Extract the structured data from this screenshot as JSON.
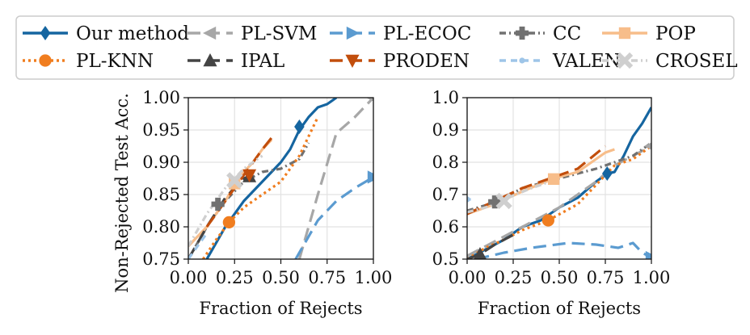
{
  "legend": [
    {
      "key": "ours",
      "label": "Our method",
      "color": "#1565a0",
      "dash": "",
      "marker": "diamond"
    },
    {
      "key": "plsvm",
      "label": "PL-SVM",
      "color": "#a7a7a7",
      "dash": "16,8",
      "marker": "triangle-left"
    },
    {
      "key": "plecoc",
      "label": "PL-ECOC",
      "color": "#5b9bd0",
      "dash": "16,8",
      "marker": "triangle-right"
    },
    {
      "key": "cc",
      "label": "CC",
      "color": "#717171",
      "dash": "8,4,2,4",
      "marker": "plus"
    },
    {
      "key": "pop",
      "label": "POP",
      "color": "#f7bd8a",
      "dash": "",
      "marker": "square"
    },
    {
      "key": "plknn",
      "label": "PL-KNN",
      "color": "#f07d1f",
      "dash": "3,4",
      "marker": "circle"
    },
    {
      "key": "ipal",
      "label": "IPAL",
      "color": "#444444",
      "dash": "16,8",
      "marker": "triangle-up"
    },
    {
      "key": "proden",
      "label": "PRODEN",
      "color": "#c24e0c",
      "dash": "16,8",
      "marker": "triangle-down"
    },
    {
      "key": "valen",
      "label": "VALEN",
      "color": "#9ec5e8",
      "dash": "8,6",
      "marker": "dot"
    },
    {
      "key": "crosel",
      "label": "CROSEL",
      "color": "#cfcfcf",
      "dash": "8,4,2,4",
      "marker": "x"
    }
  ],
  "chart_data": [
    {
      "type": "line",
      "xlabel": "Fraction of Rejects",
      "ylabel": "Non-Rejected Test Acc.",
      "xlim": [
        0.0,
        1.0
      ],
      "ylim": [
        0.75,
        1.0
      ],
      "xticks": [
        "0.00",
        "0.25",
        "0.50",
        "0.75",
        "1.00"
      ],
      "yticks": [
        "0.75",
        "0.80",
        "0.85",
        "0.90",
        "0.95",
        "1.00"
      ],
      "grid": true,
      "series": [
        {
          "key": "ours",
          "x": [
            0.1,
            0.2,
            0.3,
            0.4,
            0.5,
            0.55,
            0.6,
            0.65,
            0.7,
            0.75,
            0.8
          ],
          "y": [
            0.75,
            0.8,
            0.84,
            0.87,
            0.9,
            0.92,
            0.95,
            0.97,
            0.985,
            0.99,
            1.0
          ],
          "marker_at": [
            0.6,
            0.955
          ]
        },
        {
          "key": "plsvm",
          "x": [
            0.6,
            0.7,
            0.8,
            0.9,
            1.0
          ],
          "y": [
            0.75,
            0.85,
            0.945,
            0.97,
            1.0
          ],
          "marker_at": [
            1.0,
            1.0
          ]
        },
        {
          "key": "plecoc",
          "x": [
            0.58,
            0.7,
            0.8,
            0.9,
            1.0
          ],
          "y": [
            0.75,
            0.81,
            0.84,
            0.86,
            0.877
          ],
          "marker_at": [
            1.0,
            0.877
          ]
        },
        {
          "key": "cc",
          "x": [
            0.0,
            0.1,
            0.2,
            0.3,
            0.4,
            0.5,
            0.6,
            0.65
          ],
          "y": [
            0.75,
            0.8,
            0.84,
            0.87,
            0.885,
            0.89,
            0.905,
            0.93
          ],
          "marker_at": [
            0.16,
            0.835
          ]
        },
        {
          "key": "pop",
          "x": [
            0.0,
            0.1,
            0.2,
            0.25,
            0.3,
            0.35,
            0.4,
            0.45
          ],
          "y": [
            0.77,
            0.8,
            0.84,
            0.865,
            0.885,
            0.9,
            0.92,
            0.935
          ],
          "marker_at": [
            0.25,
            0.867
          ]
        },
        {
          "key": "plknn",
          "x": [
            0.08,
            0.15,
            0.22,
            0.3,
            0.4,
            0.5,
            0.6,
            0.7
          ],
          "y": [
            0.75,
            0.78,
            0.807,
            0.83,
            0.85,
            0.87,
            0.91,
            0.97
          ],
          "marker_at": [
            0.22,
            0.807
          ]
        },
        {
          "key": "ipal",
          "x": [
            0.0,
            0.1,
            0.2,
            0.3,
            0.35
          ],
          "y": [
            0.75,
            0.8,
            0.845,
            0.875,
            0.88
          ],
          "marker_at": [
            0.33,
            0.878
          ]
        },
        {
          "key": "proden",
          "x": [
            0.1,
            0.2,
            0.3,
            0.4,
            0.47
          ],
          "y": [
            0.8,
            0.84,
            0.88,
            0.92,
            0.945
          ],
          "marker_at": [
            0.33,
            0.88
          ]
        },
        {
          "key": "valen",
          "x": [
            0.0,
            0.05,
            0.1
          ],
          "y": [
            0.75,
            0.77,
            0.79
          ],
          "marker_at": null
        },
        {
          "key": "crosel",
          "x": [
            0.0,
            0.1,
            0.2,
            0.25,
            0.3,
            0.35,
            0.4
          ],
          "y": [
            0.77,
            0.82,
            0.86,
            0.875,
            0.89,
            0.9,
            0.91
          ],
          "marker_at": [
            0.25,
            0.872
          ]
        }
      ]
    },
    {
      "type": "line",
      "xlabel": "Fraction of Rejects",
      "ylabel": "",
      "xlim": [
        0.0,
        1.0
      ],
      "ylim": [
        0.5,
        1.0
      ],
      "xticks": [
        "0.00",
        "0.25",
        "0.50",
        "0.75",
        "1.00"
      ],
      "yticks": [
        "0.5",
        "0.6",
        "0.7",
        "0.8",
        "0.9",
        "1.0"
      ],
      "grid": true,
      "series": [
        {
          "key": "ours",
          "x": [
            0.0,
            0.1,
            0.2,
            0.3,
            0.4,
            0.5,
            0.6,
            0.7,
            0.76,
            0.8,
            0.85,
            0.9,
            0.95,
            1.0
          ],
          "y": [
            0.5,
            0.53,
            0.56,
            0.6,
            0.62,
            0.66,
            0.69,
            0.74,
            0.765,
            0.77,
            0.82,
            0.88,
            0.92,
            0.97
          ],
          "marker_at": [
            0.76,
            0.765
          ]
        },
        {
          "key": "plsvm",
          "x": [
            0.0,
            0.1,
            0.2,
            0.3,
            0.4,
            0.5,
            0.6,
            0.7,
            0.8,
            0.9,
            1.0
          ],
          "y": [
            0.51,
            0.54,
            0.57,
            0.6,
            0.63,
            0.66,
            0.7,
            0.74,
            0.79,
            0.82,
            0.85
          ],
          "marker_at": [
            1.0,
            0.85
          ]
        },
        {
          "key": "plecoc",
          "x": [
            0.05,
            0.2,
            0.35,
            0.55,
            0.7,
            0.82,
            0.9,
            0.95,
            1.0
          ],
          "y": [
            0.5,
            0.52,
            0.535,
            0.55,
            0.545,
            0.535,
            0.55,
            0.52,
            0.505
          ],
          "marker_at": [
            1.0,
            0.505
          ]
        },
        {
          "key": "cc",
          "x": [
            0.0,
            0.15,
            0.3,
            0.5,
            0.7,
            0.8,
            0.9,
            1.0
          ],
          "y": [
            0.65,
            0.675,
            0.72,
            0.75,
            0.78,
            0.8,
            0.82,
            0.86
          ],
          "marker_at": [
            0.15,
            0.677
          ]
        },
        {
          "key": "pop",
          "x": [
            0.0,
            0.15,
            0.3,
            0.47,
            0.6,
            0.75,
            0.8
          ],
          "y": [
            0.64,
            0.67,
            0.71,
            0.75,
            0.77,
            0.83,
            0.84
          ],
          "marker_at": [
            0.47,
            0.748
          ]
        },
        {
          "key": "plknn",
          "x": [
            0.0,
            0.1,
            0.2,
            0.3,
            0.44,
            0.6,
            0.7,
            0.8,
            0.9,
            1.0
          ],
          "y": [
            0.5,
            0.535,
            0.56,
            0.59,
            0.62,
            0.67,
            0.73,
            0.79,
            0.81,
            0.85
          ],
          "marker_at": [
            0.44,
            0.62
          ]
        },
        {
          "key": "ipal",
          "x": [
            0.0,
            0.07,
            0.15,
            0.25
          ],
          "y": [
            0.5,
            0.515,
            0.545,
            0.575
          ],
          "marker_at": [
            0.07,
            0.515
          ]
        },
        {
          "key": "proden",
          "x": [
            0.0,
            0.15,
            0.3,
            0.45,
            0.6,
            0.75
          ],
          "y": [
            0.64,
            0.68,
            0.72,
            0.75,
            0.78,
            0.85
          ],
          "marker_at": null
        },
        {
          "key": "valen",
          "x": [
            0.0,
            0.02
          ],
          "y": [
            0.685,
            0.685
          ],
          "marker_at": [
            0.0,
            0.685
          ]
        },
        {
          "key": "crosel",
          "x": [
            0.0,
            0.1,
            0.2,
            0.35,
            0.5
          ],
          "y": [
            0.645,
            0.66,
            0.685,
            0.72,
            0.75
          ],
          "marker_at": [
            0.2,
            0.68
          ]
        }
      ]
    }
  ]
}
